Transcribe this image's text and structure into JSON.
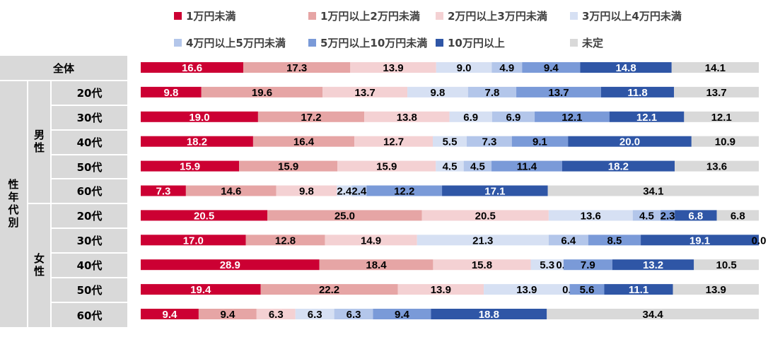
{
  "chart_data": {
    "type": "bar",
    "orientation": "horizontal",
    "stacked": true,
    "normalized": true,
    "legend_position": "top",
    "series_names": [
      "1万円未満",
      "1万円以上2万円未満",
      "2万円以上3万円未満",
      "3万円以上4万円未満",
      "4万円以上5万円未満",
      "5万円以上10万円未満",
      "10万円以上",
      "未定"
    ],
    "colors": [
      "#cc0033",
      "#e6a5a5",
      "#f4d1d3",
      "#d6e0f3",
      "#b3c6ea",
      "#7a9ad8",
      "#2f56a6",
      "#d9d9d9"
    ],
    "label_colors": [
      "#ffffff",
      "#000000",
      "#000000",
      "#000000",
      "#000000",
      "#000000",
      "#ffffff",
      "#000000"
    ],
    "groups": {
      "all": "全体",
      "gender_age": "性年代別",
      "male": "男性",
      "female": "女性"
    },
    "rows": [
      {
        "label": "全体",
        "values": [
          16.6,
          17.3,
          13.9,
          9.0,
          4.9,
          9.4,
          14.8,
          14.1
        ]
      },
      {
        "label": "20代",
        "values": [
          9.8,
          19.6,
          13.7,
          9.8,
          7.8,
          13.7,
          11.8,
          13.7
        ]
      },
      {
        "label": "30代",
        "values": [
          19.0,
          17.2,
          13.8,
          6.9,
          6.9,
          12.1,
          12.1,
          12.1
        ]
      },
      {
        "label": "40代",
        "values": [
          18.2,
          16.4,
          12.7,
          5.5,
          7.3,
          9.1,
          20.0,
          10.9
        ]
      },
      {
        "label": "50代",
        "values": [
          15.9,
          15.9,
          15.9,
          4.5,
          4.5,
          11.4,
          18.2,
          13.6
        ]
      },
      {
        "label": "60代",
        "values": [
          7.3,
          14.6,
          9.8,
          2.4,
          2.4,
          12.2,
          17.1,
          34.1
        ]
      },
      {
        "label": "20代",
        "values": [
          20.5,
          25.0,
          20.5,
          13.6,
          4.5,
          2.3,
          6.8,
          6.8
        ]
      },
      {
        "label": "30代",
        "values": [
          17.0,
          12.8,
          14.9,
          21.3,
          6.4,
          8.5,
          19.1,
          0.0
        ]
      },
      {
        "label": "40代",
        "values": [
          28.9,
          18.4,
          15.8,
          5.3,
          0.0,
          7.9,
          13.2,
          10.5
        ]
      },
      {
        "label": "50代",
        "values": [
          19.4,
          22.2,
          13.9,
          13.9,
          0.0,
          5.6,
          11.1,
          13.9
        ]
      },
      {
        "label": "60代",
        "values": [
          9.4,
          9.4,
          6.3,
          6.3,
          6.3,
          9.4,
          18.8,
          34.4
        ]
      }
    ],
    "value_labels": [
      [
        "16.6",
        "17.3",
        "13.9",
        "9.0",
        "4.9",
        "9.4",
        "14.8",
        "14.1"
      ],
      [
        "9.8",
        "19.6",
        "13.7",
        "9.8",
        "7.8",
        "13.7",
        "11.8",
        "13.7"
      ],
      [
        "19.0",
        "17.2",
        "13.8",
        "6.9",
        "6.9",
        "12.1",
        "12.1",
        "12.1"
      ],
      [
        "18.2",
        "16.4",
        "12.7",
        "5.5",
        "7.3",
        "9.1",
        "20.0",
        "10.9"
      ],
      [
        "15.9",
        "15.9",
        "15.9",
        "4.5",
        "4.5",
        "11.4",
        "18.2",
        "13.6"
      ],
      [
        "7.3",
        "14.6",
        "9.8",
        "2.4",
        "2.4",
        "12.2",
        "17.1",
        "34.1"
      ],
      [
        "20.5",
        "25.0",
        "20.5",
        "13.6",
        "4.5",
        "2.3",
        "6.8",
        "6.8"
      ],
      [
        "17.0",
        "12.8",
        "14.9",
        "21.3",
        "6.4",
        "8.5",
        "19.1",
        "0.0"
      ],
      [
        "28.9",
        "18.4",
        "15.8",
        "5.3",
        "0.0",
        "7.9",
        "13.2",
        "10.5"
      ],
      [
        "19.4",
        "22.2",
        "13.9",
        "13.9",
        "0.0",
        "5.6",
        "11.1",
        "13.9"
      ],
      [
        "9.4",
        "9.4",
        "6.3",
        "6.3",
        "6.3",
        "9.4",
        "18.8",
        "34.4"
      ]
    ],
    "xlim": [
      0,
      100
    ]
  }
}
